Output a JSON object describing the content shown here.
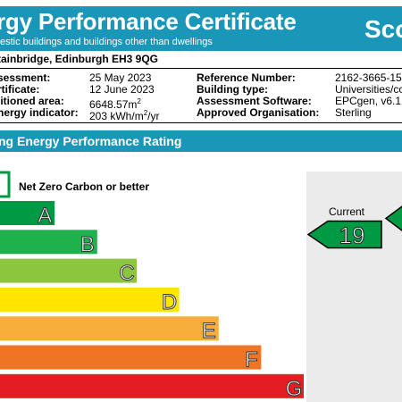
{
  "header": {
    "title": "rgy Performance Certificate",
    "subtitle": "estic buildings and buildings other than dwellings",
    "brand": "Sco"
  },
  "address": "tainbridge, Edinburgh EH3 9QG",
  "info": {
    "col1": [
      {
        "label": "sessment:"
      },
      {
        "label": "rtificate:"
      },
      {
        "label": "litioned area:"
      },
      {
        "label": "nergy indicator:"
      }
    ],
    "col2": [
      {
        "value": "25 May 2023"
      },
      {
        "value": "12 June 2023"
      },
      {
        "value": "6648.57m",
        "sup": "2"
      },
      {
        "value": "203 kWh/m",
        "sup": "2",
        "tail": "/yr"
      }
    ],
    "col3": [
      {
        "label": "Reference Number:"
      },
      {
        "label": "Building type:"
      },
      {
        "label": "Assessment Software:"
      },
      {
        "label": "Approved Organisation:"
      }
    ],
    "col4": [
      {
        "value": "2162-3665-157"
      },
      {
        "value": "Universities/co"
      },
      {
        "value": "EPCgen, v6.1."
      },
      {
        "value": "Sterling"
      }
    ]
  },
  "rating_title": "ng Energy Performance Rating",
  "rating": {
    "net_zero_label": "Net Zero Carbon or better",
    "bands": [
      {
        "letter": "A",
        "color": "#009a44",
        "fraction": 0.18
      },
      {
        "letter": "B",
        "color": "#1fb14c",
        "fraction": 0.32
      },
      {
        "letter": "C",
        "color": "#8cc63f",
        "fraction": 0.45
      },
      {
        "letter": "D",
        "color": "#ffe600",
        "fraction": 0.59
      },
      {
        "letter": "E",
        "color": "#f7ae3b",
        "fraction": 0.72
      },
      {
        "letter": "F",
        "color": "#ee7524",
        "fraction": 0.86
      },
      {
        "letter": "G",
        "color": "#e31d23",
        "fraction": 1.0
      }
    ],
    "current_label": "Current",
    "current_value": "19",
    "current_band": "A",
    "current_color": "#009a44",
    "outline_color": "#000000"
  }
}
